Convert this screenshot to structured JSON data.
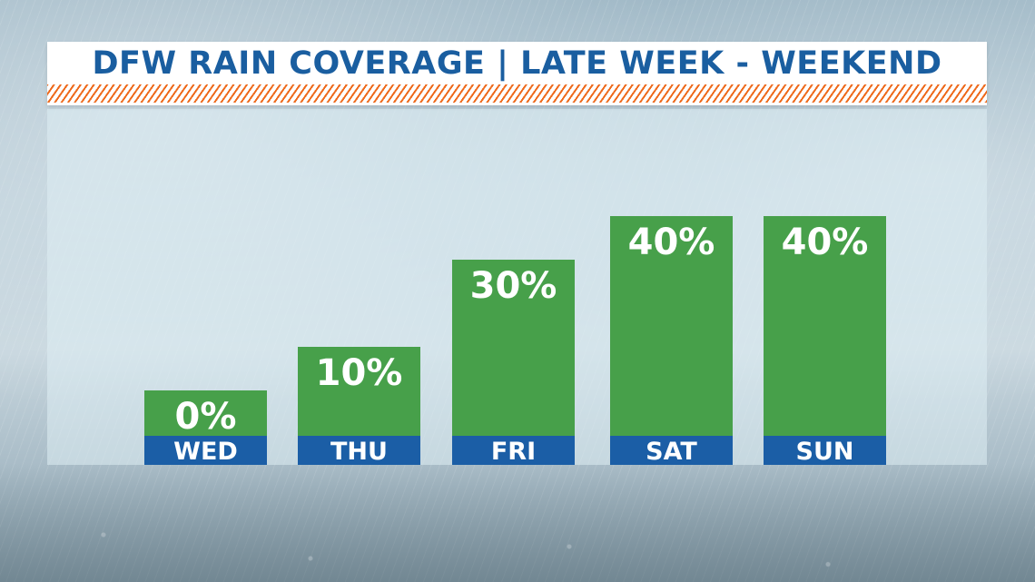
{
  "title": "DFW RAIN COVERAGE | LATE WEEK - WEEKEND",
  "colors": {
    "title_text": "#1a5ea0",
    "stripe": "#ee6a1c",
    "bar": "#47a04a",
    "label_band": "#1b5ea6"
  },
  "chart_data": {
    "type": "bar",
    "title": "DFW RAIN COVERAGE | LATE WEEK - WEEKEND",
    "categories": [
      "WED",
      "THU",
      "FRI",
      "SAT",
      "SUN"
    ],
    "values": [
      0,
      10,
      30,
      40,
      40
    ],
    "value_labels": [
      "0%",
      "10%",
      "30%",
      "40%",
      "40%"
    ],
    "unit": "%",
    "grid": false,
    "legend": "none"
  }
}
